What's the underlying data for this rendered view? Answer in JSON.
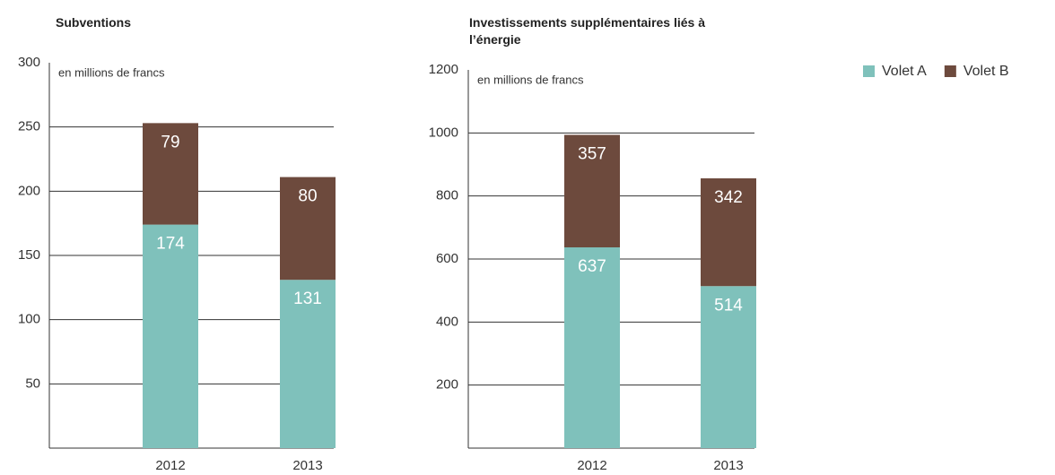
{
  "chart_data": [
    {
      "type": "bar",
      "stacked": true,
      "title": "Subventions",
      "axis_label": "en millions de francs",
      "categories": [
        "2012",
        "2013"
      ],
      "series": [
        {
          "name": "Volet A",
          "color": "#7fc1bb",
          "values": [
            174,
            131
          ]
        },
        {
          "name": "Volet B",
          "color": "#6d4a3d",
          "values": [
            79,
            80
          ]
        }
      ],
      "ylim": [
        0,
        300
      ],
      "yticks": [
        50,
        100,
        150,
        200,
        250,
        300
      ],
      "grid": true
    },
    {
      "type": "bar",
      "stacked": true,
      "title": "Investissements supplémentaires liés à l’énergie",
      "axis_label": "en millions de francs",
      "categories": [
        "2012",
        "2013"
      ],
      "series": [
        {
          "name": "Volet A",
          "color": "#7fc1bb",
          "values": [
            637,
            514
          ]
        },
        {
          "name": "Volet B",
          "color": "#6d4a3d",
          "values": [
            357,
            342
          ]
        }
      ],
      "ylim": [
        0,
        1200
      ],
      "yticks": [
        200,
        400,
        600,
        800,
        1000,
        1200
      ],
      "grid": true,
      "legend": "right"
    }
  ]
}
